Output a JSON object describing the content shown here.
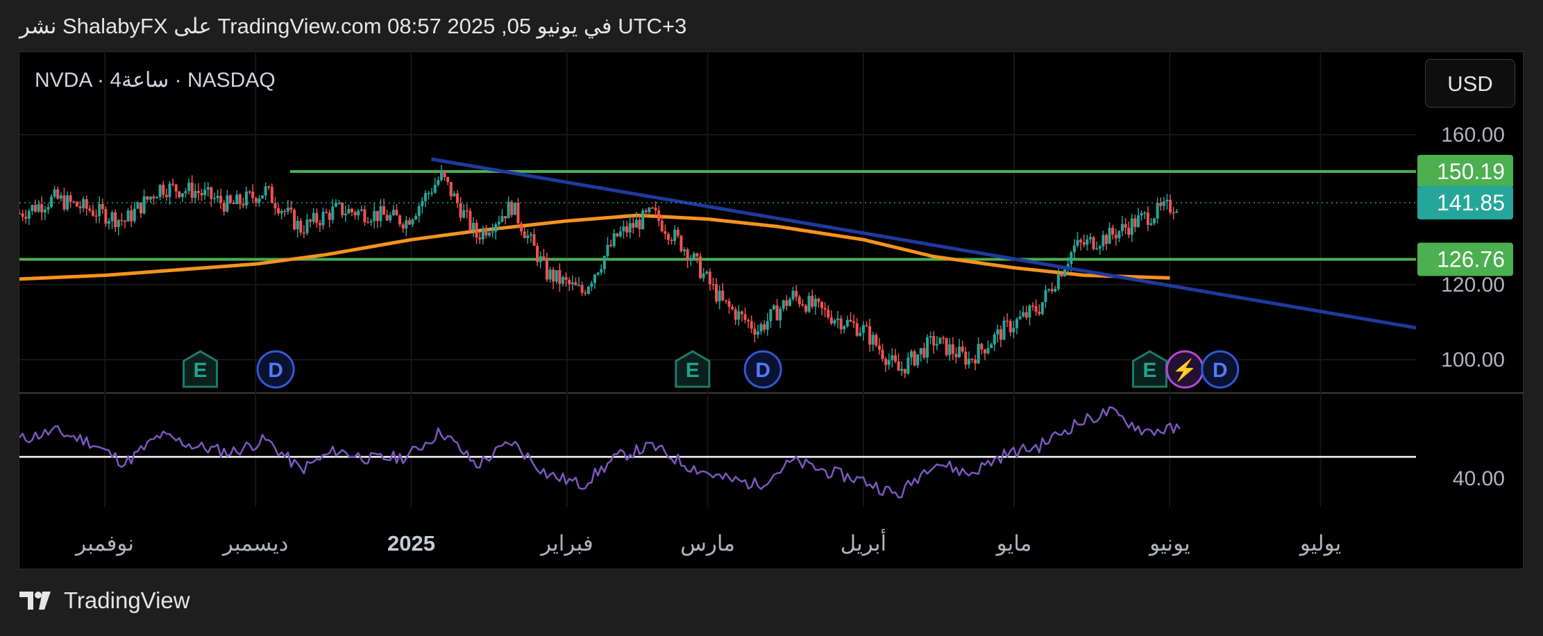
{
  "header": {
    "published_text": "نشر ShalabyFX على TradingView.com في يونيو 05, 2025 08:57 UTC+3"
  },
  "symbol": {
    "label": "NVDA · 4ساعة · NASDAQ"
  },
  "currency_button": {
    "label": "USD"
  },
  "footer": {
    "brand": "TradingView"
  },
  "colors": {
    "up_candle": "#26a69a",
    "down_candle": "#ef5350",
    "ma_line": "#f7931e",
    "trend_line": "#1f3a9e",
    "horizontal_levels": "#4caf50",
    "rsi_line": "#7e57c2",
    "last_price_tag": "#26a69a"
  },
  "chart_data": [
    {
      "type": "candlestick",
      "title": "NVDA · 4ساعة · NASDAQ",
      "xlabel": "",
      "ylabel": "",
      "ylim": [
        91,
        167
      ],
      "price_ticks": [
        "160.00",
        "120.00",
        "100.00"
      ],
      "price_tick_values": [
        160,
        120,
        100
      ],
      "time_ticks": [
        "نوفمبر",
        "ديسمبر",
        "2025",
        "فبراير",
        "مارس",
        "أبريل",
        "مايو",
        "يونيو",
        "يوليو"
      ],
      "time_tick_dates": [
        "2024-11-01",
        "2024-12-01",
        "2025-01-01",
        "2025-02-01",
        "2025-03-01",
        "2025-04-01",
        "2025-05-01",
        "2025-06-01",
        "2025-07-01"
      ],
      "last_price": {
        "label": "141.85",
        "value": 141.85
      },
      "horizontal_levels": [
        {
          "label": "150.19",
          "value": 150.19
        },
        {
          "label": "126.76",
          "value": 126.76
        }
      ],
      "trend_line": {
        "points": [
          {
            "date": "2025-01-05",
            "value": 153.5
          },
          {
            "date": "2025-07-20",
            "value": 108.5
          }
        ]
      },
      "moving_average": {
        "points": [
          [
            "2024-10-15",
            121.5
          ],
          [
            "2024-11-01",
            122.5
          ],
          [
            "2024-12-01",
            125.5
          ],
          [
            "2024-12-15",
            128
          ],
          [
            "2025-01-01",
            132
          ],
          [
            "2025-01-15",
            134.5
          ],
          [
            "2025-02-01",
            137
          ],
          [
            "2025-02-15",
            138.5
          ],
          [
            "2025-03-01",
            137.5
          ],
          [
            "2025-03-15",
            135.5
          ],
          [
            "2025-04-01",
            132
          ],
          [
            "2025-04-15",
            127.5
          ],
          [
            "2025-05-01",
            124.5
          ],
          [
            "2025-05-15",
            122.5
          ],
          [
            "2025-06-01",
            121.8
          ]
        ]
      },
      "candles_close": [
        [
          "2024-10-15",
          139
        ],
        [
          "2024-10-22",
          143
        ],
        [
          "2024-10-29",
          140
        ],
        [
          "2024-11-05",
          137
        ],
        [
          "2024-11-12",
          146
        ],
        [
          "2024-11-19",
          145
        ],
        [
          "2024-11-26",
          141
        ],
        [
          "2024-12-03",
          145
        ],
        [
          "2024-12-10",
          135
        ],
        [
          "2024-12-17",
          140
        ],
        [
          "2024-12-24",
          139
        ],
        [
          "2024-12-31",
          137
        ],
        [
          "2025-01-07",
          149
        ],
        [
          "2025-01-14",
          133
        ],
        [
          "2025-01-21",
          141
        ],
        [
          "2025-01-28",
          123
        ],
        [
          "2025-02-04",
          118
        ],
        [
          "2025-02-11",
          133
        ],
        [
          "2025-02-18",
          139
        ],
        [
          "2025-02-25",
          129
        ],
        [
          "2025-03-04",
          115
        ],
        [
          "2025-03-11",
          108
        ],
        [
          "2025-03-18",
          117
        ],
        [
          "2025-03-25",
          112
        ],
        [
          "2025-04-01",
          108
        ],
        [
          "2025-04-08",
          97
        ],
        [
          "2025-04-15",
          105
        ],
        [
          "2025-04-22",
          100
        ],
        [
          "2025-04-29",
          108
        ],
        [
          "2025-05-06",
          114
        ],
        [
          "2025-05-13",
          130
        ],
        [
          "2025-05-20",
          133
        ],
        [
          "2025-05-27",
          138
        ],
        [
          "2025-06-03",
          141.85
        ]
      ],
      "events": [
        {
          "label": "E",
          "date": "2024-11-20"
        },
        {
          "label": "D",
          "date": "2024-12-05"
        },
        {
          "label": "E",
          "date": "2025-02-26"
        },
        {
          "label": "D",
          "date": "2025-03-12"
        },
        {
          "label": "E",
          "date": "2025-05-28"
        },
        {
          "label": "⚡",
          "date": "2025-06-04"
        },
        {
          "label": "D",
          "date": "2025-06-11"
        }
      ]
    },
    {
      "type": "line",
      "title": "",
      "ylim": [
        20,
        90
      ],
      "price_ticks": [
        "40.00"
      ],
      "price_tick_values": [
        40
      ],
      "reference_level": 50,
      "series": [
        {
          "values": [
            [
              "2024-10-15",
              58
            ],
            [
              "2024-10-22",
              62
            ],
            [
              "2024-10-29",
              57
            ],
            [
              "2024-11-05",
              47
            ],
            [
              "2024-11-12",
              60
            ],
            [
              "2024-11-19",
              55
            ],
            [
              "2024-11-26",
              52
            ],
            [
              "2024-12-03",
              58
            ],
            [
              "2024-12-10",
              44
            ],
            [
              "2024-12-17",
              53
            ],
            [
              "2024-12-24",
              49
            ],
            [
              "2024-12-31",
              50
            ],
            [
              "2025-01-07",
              62
            ],
            [
              "2025-01-14",
              46
            ],
            [
              "2025-01-21",
              57
            ],
            [
              "2025-01-28",
              42
            ],
            [
              "2025-02-04",
              37
            ],
            [
              "2025-02-11",
              50
            ],
            [
              "2025-02-18",
              55
            ],
            [
              "2025-02-25",
              46
            ],
            [
              "2025-03-04",
              40
            ],
            [
              "2025-03-11",
              37
            ],
            [
              "2025-03-18",
              48
            ],
            [
              "2025-03-25",
              43
            ],
            [
              "2025-04-01",
              39
            ],
            [
              "2025-04-08",
              32
            ],
            [
              "2025-04-15",
              48
            ],
            [
              "2025-04-22",
              42
            ],
            [
              "2025-04-29",
              51
            ],
            [
              "2025-05-06",
              55
            ],
            [
              "2025-05-13",
              65
            ],
            [
              "2025-05-20",
              71
            ],
            [
              "2025-05-27",
              62
            ],
            [
              "2025-06-03",
              63
            ]
          ]
        }
      ]
    }
  ]
}
